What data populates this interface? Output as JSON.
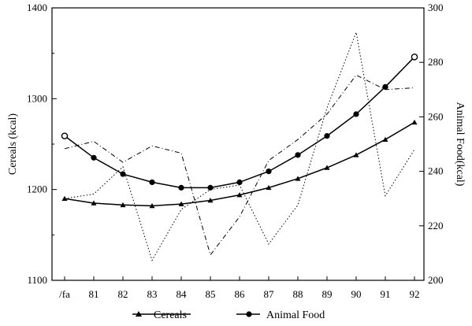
{
  "chart_data": {
    "type": "line",
    "categories": [
      "/fa",
      "81",
      "82",
      "83",
      "84",
      "85",
      "86",
      "87",
      "88",
      "89",
      "90",
      "91",
      "92"
    ],
    "left_axis": {
      "label": "Cereals (kcal)",
      "ylim": [
        1100,
        1400
      ],
      "ticks": [
        "1100",
        "1200",
        "1300",
        "1400"
      ]
    },
    "right_axis": {
      "label": "Animal Food(kcal)",
      "ylim": [
        200,
        300
      ],
      "ticks": [
        "200",
        "220",
        "240",
        "260",
        "280",
        "300"
      ]
    },
    "series": [
      {
        "name": "Cereals",
        "axis": "left",
        "style": "solid",
        "marker": "triangle",
        "values": [
          1190,
          1185,
          1183,
          1182,
          1184,
          1188,
          1194,
          1202,
          1212,
          1224,
          1238,
          1255,
          1274
        ]
      },
      {
        "name": "Animal Food",
        "axis": "right",
        "style": "solid",
        "marker": "circle",
        "values": [
          253,
          245,
          239,
          236,
          234,
          234,
          236,
          240,
          246,
          253,
          261,
          271,
          282
        ]
      },
      {
        "axis": "left",
        "style": "dashed",
        "values": [
          1245,
          1253,
          1230,
          1248,
          1240,
          1128,
          1170,
          1232,
          1255,
          1283,
          1326,
          1310,
          1312
        ]
      },
      {
        "axis": "left",
        "style": "dotted",
        "values": [
          1190,
          1195,
          1225,
          1122,
          1178,
          1200,
          1205,
          1140,
          1183,
          1290,
          1373,
          1193,
          1244
        ]
      }
    ],
    "legend": {
      "placement": "bottom",
      "entries": [
        "Cereals",
        "Animal Food"
      ]
    },
    "grid": false
  }
}
